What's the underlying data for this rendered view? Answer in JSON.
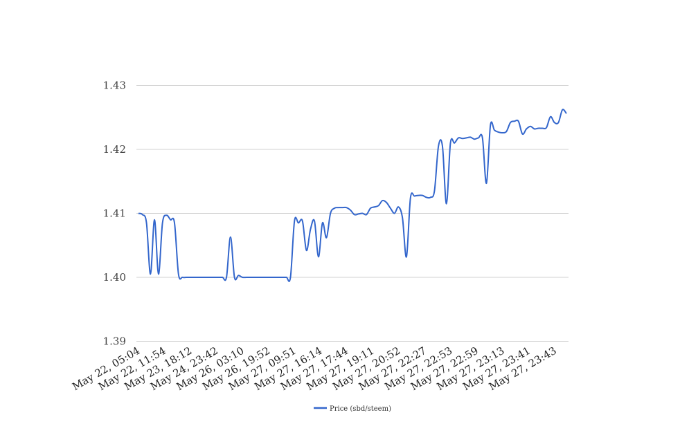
{
  "chart_data": {
    "type": "line",
    "title": "",
    "xlabel": "",
    "ylabel": "",
    "ylim": [
      1.39,
      1.43
    ],
    "yticks": [
      "1.39",
      "1.40",
      "1.41",
      "1.42",
      "1.43"
    ],
    "xtick_labels": [
      "May 22, 05:04",
      "May 22, 11:54",
      "May 23, 18:12",
      "May 24, 23:42",
      "May 26, 03:10",
      "May 26, 19:52",
      "May 27, 09:51",
      "May 27, 16:14",
      "May 27, 17:44",
      "May 27, 19:11",
      "May 27, 20:52",
      "May 27, 22:27",
      "May 27, 22:53",
      "May 27, 22:59",
      "May 27, 23:13",
      "May 27, 23:41",
      "May 27, 23:43"
    ],
    "grid": true,
    "legend_position": "bottom",
    "series": [
      {
        "name": "Price (sbd/steem)",
        "color": "#3366cc",
        "values": [
          1.41,
          1.4098,
          1.4085,
          1.4005,
          1.409,
          1.4005,
          1.4085,
          1.4097,
          1.409,
          1.4085,
          1.4005,
          1.4,
          1.4,
          1.4,
          1.4,
          1.4,
          1.4,
          1.4,
          1.4,
          1.4,
          1.4,
          1.4,
          1.4,
          1.4063,
          1.4,
          1.4003,
          1.4,
          1.4,
          1.4,
          1.4,
          1.4,
          1.4,
          1.4,
          1.4,
          1.4,
          1.4,
          1.4,
          1.4,
          1.4,
          1.4088,
          1.4085,
          1.4088,
          1.4042,
          1.4075,
          1.4088,
          1.4032,
          1.4085,
          1.4062,
          1.41,
          1.4108,
          1.4109,
          1.4109,
          1.4109,
          1.4105,
          1.4098,
          1.4099,
          1.41,
          1.4098,
          1.4108,
          1.411,
          1.4112,
          1.412,
          1.4117,
          1.4108,
          1.41,
          1.411,
          1.4093,
          1.4032,
          1.4124,
          1.4127,
          1.4128,
          1.4128,
          1.4125,
          1.4125,
          1.4135,
          1.4205,
          1.4205,
          1.4115,
          1.421,
          1.421,
          1.4218,
          1.4217,
          1.4218,
          1.4219,
          1.4216,
          1.4218,
          1.4218,
          1.4147,
          1.4238,
          1.423,
          1.4227,
          1.4226,
          1.4228,
          1.4242,
          1.4244,
          1.4244,
          1.4224,
          1.4232,
          1.4236,
          1.4232,
          1.4233,
          1.4233,
          1.4234,
          1.4251,
          1.4242,
          1.4242,
          1.4262,
          1.4256
        ]
      }
    ]
  }
}
